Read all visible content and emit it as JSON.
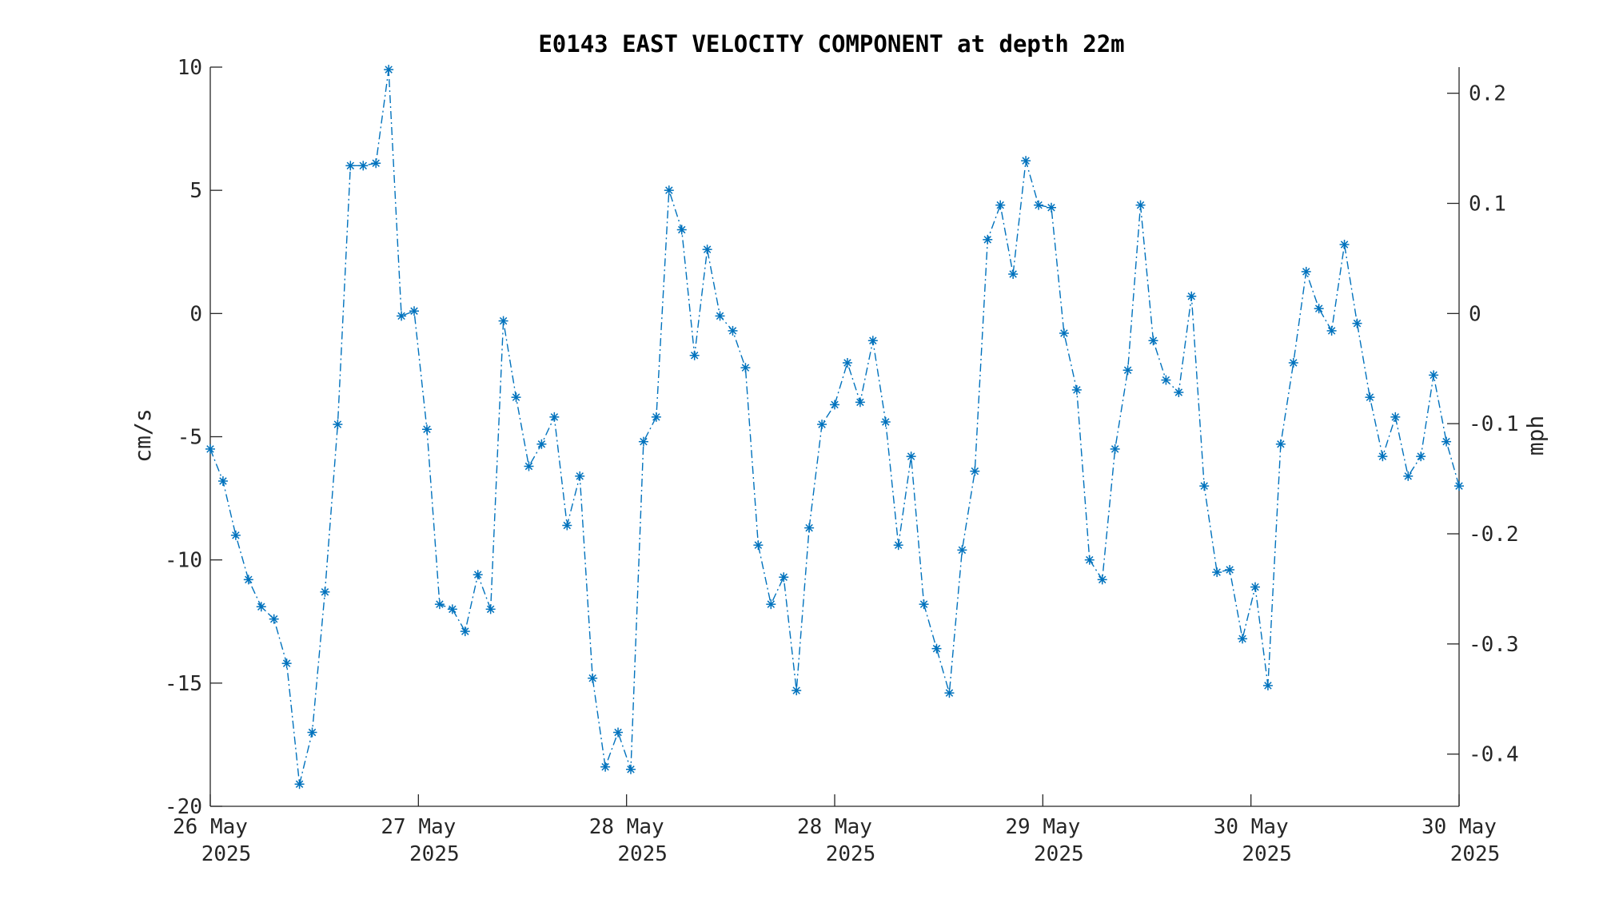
{
  "chart_data": {
    "type": "line",
    "title": "E0143 EAST VELOCITY COMPONENT at depth 22m",
    "ylabel": "cm/s",
    "y2label": "mph",
    "ylim": [
      -20,
      10
    ],
    "y2lim": [
      -0.4474,
      0.2237
    ],
    "yticks": [
      "10",
      "5",
      "0",
      "-5",
      "-10",
      "-15",
      "-20"
    ],
    "yticks_values": [
      10,
      5,
      0,
      -5,
      -10,
      -15,
      -20
    ],
    "y2ticks": [
      "0.2",
      "0.1",
      "0",
      "-0.1",
      "-0.2",
      "-0.3",
      "-0.4"
    ],
    "y2ticks_values": [
      0.2,
      0.1,
      0,
      -0.1,
      -0.2,
      -0.3,
      -0.4
    ],
    "xticks": [
      {
        "line1": "26 May",
        "line2": "2025"
      },
      {
        "line1": "27 May",
        "line2": "2025"
      },
      {
        "line1": "28 May",
        "line2": "2025"
      },
      {
        "line1": "28 May",
        "line2": "2025"
      },
      {
        "line1": "29 May",
        "line2": "2025"
      },
      {
        "line1": "30 May",
        "line2": "2025"
      },
      {
        "line1": "30 May",
        "line2": "2025"
      }
    ],
    "marker": "asterisk",
    "line_style": "dash-dot",
    "series_color": "#0072BD",
    "grid": false,
    "series": [
      {
        "values": [
          -5.5,
          -6.8,
          -9.0,
          -10.8,
          -11.9,
          -12.4,
          -14.2,
          -19.1,
          -17.0,
          -11.3,
          -4.5,
          6.0,
          6.0,
          6.1,
          9.9,
          -0.1,
          0.1,
          -4.7,
          -11.8,
          -12.0,
          -12.9,
          -10.6,
          -12.0,
          -0.3,
          -3.4,
          -6.2,
          -5.3,
          -4.2,
          -8.6,
          -6.6,
          -14.8,
          -18.4,
          -17.0,
          -18.5,
          -5.2,
          -4.2,
          5.0,
          3.4,
          -1.7,
          2.6,
          -0.1,
          -0.7,
          -2.2,
          -9.4,
          -11.8,
          -10.7,
          -15.3,
          -8.7,
          -4.5,
          -3.7,
          -2.0,
          -3.6,
          -1.1,
          -4.4,
          -9.4,
          -5.8,
          -11.8,
          -13.6,
          -15.4,
          -9.6,
          -6.4,
          3.0,
          4.4,
          1.6,
          6.2,
          4.4,
          4.3,
          -0.8,
          -3.1,
          -10.0,
          -10.8,
          -5.5,
          -2.3,
          4.4,
          -1.1,
          -2.7,
          -3.2,
          0.7,
          -7.0,
          -10.5,
          -10.4,
          -13.2,
          -11.1,
          -15.1,
          -5.3,
          -2.0,
          1.7,
          0.2,
          -0.7,
          2.8,
          -0.4,
          -3.4,
          -5.8,
          -4.2,
          -6.6,
          -5.8,
          -2.5,
          -5.2,
          -7.0
        ]
      }
    ]
  }
}
